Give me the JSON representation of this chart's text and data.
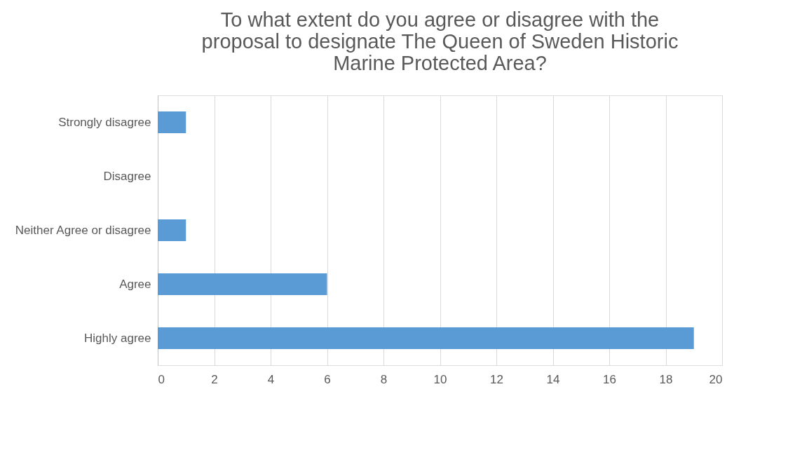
{
  "chart_data": {
    "type": "bar",
    "orientation": "horizontal",
    "title": "To what extent do you agree or disagree with the proposal to designate The Queen of Sweden Historic Marine Protected Area?",
    "categories": [
      "Strongly disagree",
      "Disagree",
      "Neither Agree or disagree",
      "Agree",
      "Highly agree"
    ],
    "values": [
      1,
      0,
      1,
      6,
      19
    ],
    "color": "#5b9bd5",
    "xlim": [
      0,
      20
    ],
    "xticks": [
      0,
      2,
      4,
      6,
      8,
      10,
      12,
      14,
      16,
      18,
      20
    ],
    "grid": "x"
  }
}
